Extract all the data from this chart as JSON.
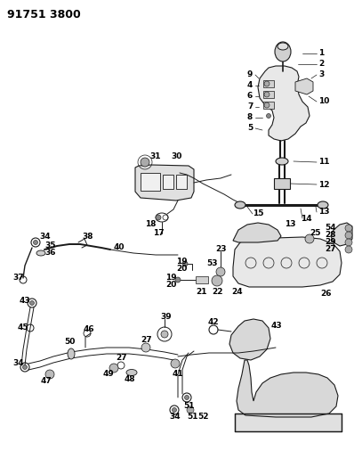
{
  "title": "91751 3800",
  "bg_color": "#ffffff",
  "line_color": "#1a1a1a",
  "text_color": "#000000",
  "fig_width": 3.98,
  "fig_height": 5.33,
  "dpi": 100
}
